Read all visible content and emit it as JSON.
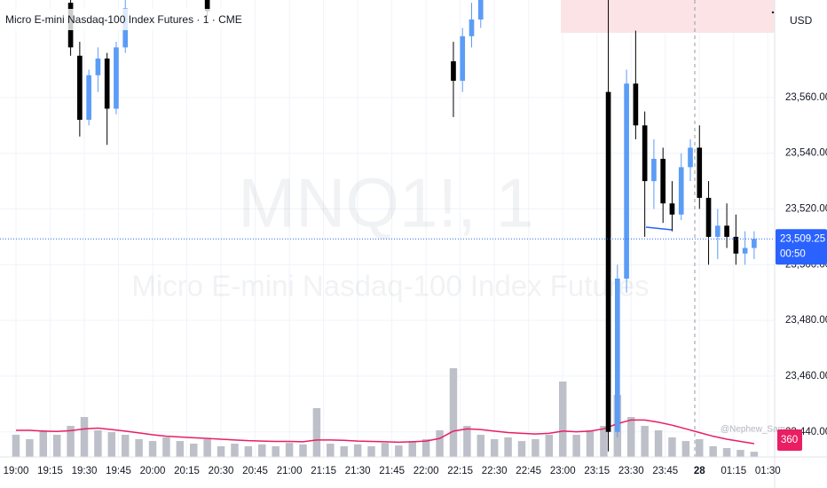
{
  "chart_data": {
    "type": "candlestick",
    "title": "Micro E-mini Nasdaq-100 Index Futures · 1 · CME",
    "currency": "USD",
    "watermark": "MNQ1!, 1",
    "watermark_subtitle": "Micro E-mini Nasdaq-100 Index Futures",
    "author": "@Nephew_Sam_",
    "up_color": "#5b9cf6",
    "down_color": "#000000",
    "grid": true,
    "xlim": [
      -7,
      333
    ],
    "ylim": [
      23431,
      23595
    ],
    "y2lim": [
      0,
      12360
    ],
    "xticks": [
      {
        "value": 0,
        "label": "19:00"
      },
      {
        "value": 15,
        "label": "19:15"
      },
      {
        "value": 30,
        "label": "19:30"
      },
      {
        "value": 45,
        "label": "19:45"
      },
      {
        "value": 60,
        "label": "20:00"
      },
      {
        "value": 75,
        "label": "20:15"
      },
      {
        "value": 90,
        "label": "20:30"
      },
      {
        "value": 105,
        "label": "20:45"
      },
      {
        "value": 120,
        "label": "21:00"
      },
      {
        "value": 135,
        "label": "21:15"
      },
      {
        "value": 150,
        "label": "21:30"
      },
      {
        "value": 165,
        "label": "21:45"
      },
      {
        "value": 180,
        "label": "22:00"
      },
      {
        "value": 195,
        "label": "22:15"
      },
      {
        "value": 210,
        "label": "22:30"
      },
      {
        "value": 225,
        "label": "22:45"
      },
      {
        "value": 240,
        "label": "23:00"
      },
      {
        "value": 255,
        "label": "23:15"
      },
      {
        "value": 270,
        "label": "23:30"
      },
      {
        "value": 285,
        "label": "23:45"
      },
      {
        "value": 300,
        "label": "28"
      },
      {
        "value": 315,
        "label": "01:15"
      },
      {
        "value": 330,
        "label": "01:30"
      }
    ],
    "yticks": [
      {
        "value": 23440,
        "label": "23,440.00"
      },
      {
        "value": 23460,
        "label": "23,460.00"
      },
      {
        "value": 23480,
        "label": "23,480.00"
      },
      {
        "value": 23500,
        "label": "23,500.00"
      },
      {
        "value": 23520,
        "label": "23,520.00"
      },
      {
        "value": 23540,
        "label": "23,540.00"
      },
      {
        "value": 23560,
        "label": "23,560.00"
      }
    ],
    "candles": {
      "x": [
        24,
        28,
        32,
        36,
        40,
        44,
        48,
        84,
        192,
        196,
        200,
        204,
        260,
        264,
        268,
        272,
        276,
        280,
        284,
        288,
        292,
        296,
        300,
        304,
        308,
        312,
        316,
        320,
        324
      ],
      "open": [
        23594,
        23575,
        23552,
        23568,
        23574,
        23556,
        23578,
        23596,
        23573,
        23566,
        23582,
        23588,
        23562,
        23440,
        23495,
        23565,
        23550,
        23530,
        23538,
        23522,
        23518,
        23535,
        23542,
        23524,
        23510,
        23514,
        23510,
        23504,
        23506
      ],
      "high": [
        23596,
        23580,
        23570,
        23578,
        23576,
        23580,
        23595,
        23598,
        23580,
        23585,
        23594,
        23598,
        23600,
        23500,
        23570,
        23584,
        23555,
        23545,
        23542,
        23530,
        23540,
        23545,
        23550,
        23530,
        23520,
        23522,
        23518,
        23512,
        23512
      ],
      "low": [
        23575,
        23546,
        23550,
        23562,
        23543,
        23554,
        23576,
        23589,
        23553,
        23562,
        23578,
        23585,
        23433,
        23438,
        23490,
        23545,
        23510,
        23520,
        23515,
        23512,
        23516,
        23530,
        23520,
        23500,
        23502,
        23506,
        23500,
        23500,
        23502
      ],
      "close": [
        23578,
        23552,
        23568,
        23574,
        23556,
        23578,
        23592,
        23591,
        23566,
        23582,
        23588,
        23595,
        23440,
        23495,
        23565,
        23550,
        23530,
        23538,
        23522,
        23518,
        23535,
        23542,
        23524,
        23510,
        23514,
        23510,
        23504,
        23506,
        23509.25
      ]
    },
    "current_price": {
      "value": 23509.25,
      "label": "23,509.25"
    },
    "countdown": "00:50",
    "volume": {
      "color": "#b2b5be",
      "x": [
        0,
        6,
        12,
        18,
        24,
        30,
        36,
        42,
        48,
        54,
        60,
        66,
        72,
        78,
        84,
        90,
        96,
        102,
        108,
        114,
        120,
        126,
        132,
        138,
        144,
        150,
        156,
        162,
        168,
        174,
        180,
        186,
        192,
        198,
        204,
        210,
        216,
        222,
        228,
        234,
        240,
        246,
        252,
        258,
        264,
        270,
        276,
        282,
        288,
        294,
        300,
        306,
        312,
        318,
        324
      ],
      "values": [
        600,
        480,
        720,
        600,
        840,
        1080,
        720,
        670,
        600,
        480,
        430,
        530,
        430,
        360,
        480,
        290,
        360,
        290,
        340,
        290,
        380,
        340,
        1320,
        360,
        290,
        340,
        290,
        380,
        310,
        430,
        480,
        720,
        2400,
        840,
        600,
        480,
        530,
        430,
        480,
        600,
        2040,
        600,
        720,
        840,
        1680,
        1080,
        840,
        720,
        530,
        430,
        480,
        290,
        240,
        190,
        140
      ],
      "ma_color": "#e91e63",
      "ma_values": [
        720,
        720,
        700,
        690,
        710,
        760,
        780,
        740,
        700,
        650,
        600,
        560,
        540,
        520,
        500,
        480,
        460,
        440,
        430,
        420,
        420,
        410,
        460,
        460,
        450,
        430,
        420,
        410,
        400,
        410,
        430,
        500,
        700,
        760,
        740,
        700,
        660,
        640,
        620,
        640,
        700,
        680,
        700,
        760,
        900,
        1000,
        1000,
        940,
        860,
        760,
        660,
        560,
        480,
        420,
        360
      ]
    }
  }
}
